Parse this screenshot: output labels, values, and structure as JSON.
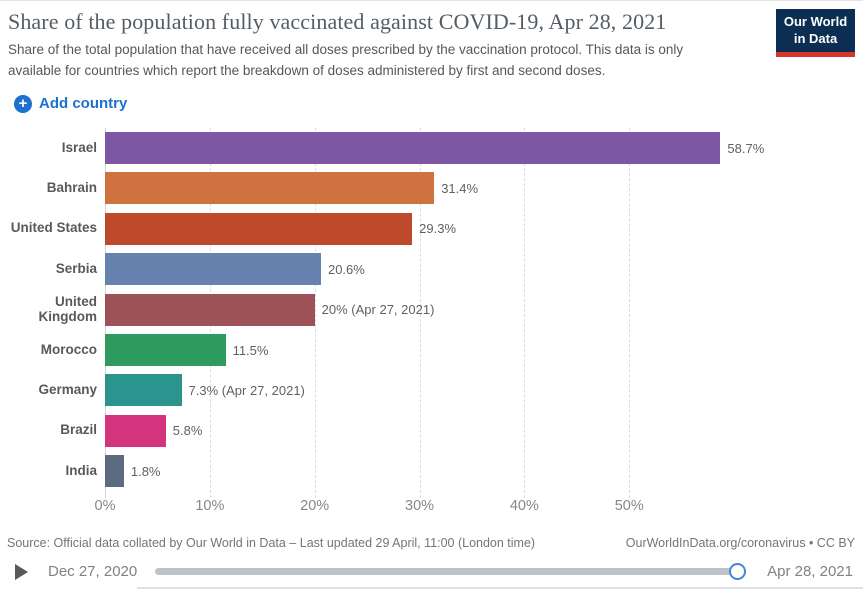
{
  "header": {
    "title": "Share of the population fully vaccinated against COVID-19, Apr 28, 2021",
    "subtitle": "Share of the total population that have received all doses prescribed by the vaccination protocol. This data is only available for countries which report the breakdown of doses administered by first and second doses.",
    "logo": {
      "line1": "Our World",
      "line2": "in Data",
      "bg_color": "#0d2e53",
      "stripe_color": "#d8352a"
    }
  },
  "controls": {
    "add_country_label": "Add country",
    "accent_color": "#1d70cf"
  },
  "chart_data": {
    "type": "bar",
    "orientation": "horizontal",
    "title": "Share of the population fully vaccinated against COVID-19, Apr 28, 2021",
    "categories": [
      "Israel",
      "Bahrain",
      "United States",
      "Serbia",
      "United Kingdom",
      "Morocco",
      "Germany",
      "Brazil",
      "India"
    ],
    "values": [
      58.7,
      31.4,
      29.3,
      20.6,
      20,
      11.5,
      7.3,
      5.8,
      1.8
    ],
    "value_labels": [
      "58.7%",
      "31.4%",
      "29.3%",
      "20.6%",
      "20% (Apr 27, 2021)",
      "11.5%",
      "7.3% (Apr 27, 2021)",
      "5.8%",
      "1.8%"
    ],
    "bar_colors": [
      "#7d56a4",
      "#ce7340",
      "#bf4a2b",
      "#6583ae",
      "#9c5257",
      "#2f9a5e",
      "#2b948e",
      "#d4347e",
      "#5c6a82"
    ],
    "x_ticks": [
      "0%",
      "10%",
      "20%",
      "30%",
      "40%",
      "50%"
    ],
    "x_tick_values": [
      0,
      10,
      20,
      30,
      40,
      50
    ],
    "xlim": [
      0,
      72.3
    ],
    "grid": "vertical dashed",
    "legend": "none",
    "unit": "%"
  },
  "footer": {
    "source": "Source: Official data collated by Our World in Data – Last updated 29 April, 11:00 (London time)",
    "link": "OurWorldInData.org/coronavirus • CC BY"
  },
  "timeline": {
    "start": "Dec 27, 2020",
    "end": "Apr 28, 2021"
  }
}
